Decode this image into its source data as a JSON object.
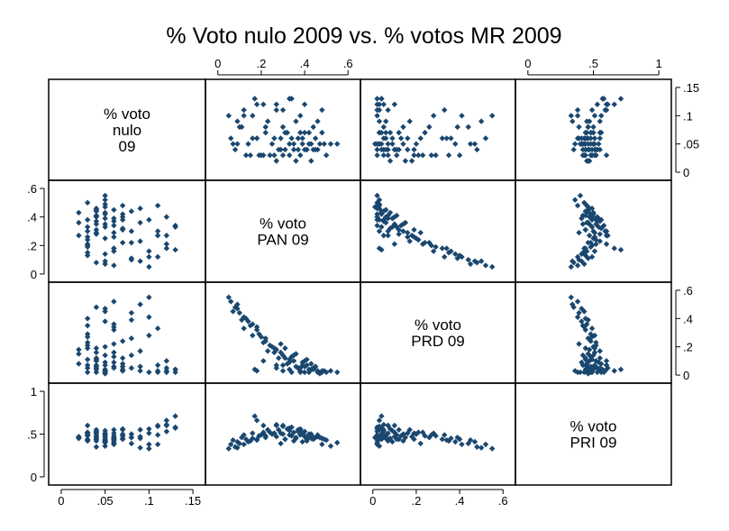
{
  "chart_data": {
    "type": "scatter_matrix",
    "title": "% Voto nulo 2009 vs. % votos MR 2009",
    "marker_color": "#1a476f",
    "variables": [
      {
        "key": "nulo",
        "label_lines": [
          "% voto",
          "nulo",
          "09"
        ],
        "range": [
          0,
          0.15
        ],
        "ticks": [
          0,
          0.05,
          0.1,
          0.15
        ],
        "tick_labels": [
          "0",
          ".05",
          ".1",
          ".15"
        ]
      },
      {
        "key": "pan",
        "label_lines": [
          "% voto",
          "PAN 09"
        ],
        "range": [
          0,
          0.6
        ],
        "ticks": [
          0,
          0.2,
          0.4,
          0.6
        ],
        "tick_labels": [
          "0",
          ".2",
          ".4",
          ".6"
        ]
      },
      {
        "key": "prd",
        "label_lines": [
          "% voto",
          "PRD 09"
        ],
        "range": [
          0,
          0.6
        ],
        "ticks": [
          0,
          0.2,
          0.4,
          0.6
        ],
        "tick_labels": [
          "0",
          ".2",
          ".4",
          ".6"
        ]
      },
      {
        "key": "pri",
        "label_lines": [
          "% voto",
          "PRI 09"
        ],
        "range": [
          0,
          1
        ],
        "ticks": [
          0,
          0.5,
          1
        ],
        "tick_labels": [
          "0",
          ".5",
          "1"
        ]
      }
    ],
    "observations": [
      [
        0.03,
        0.38,
        0.05,
        0.49
      ],
      [
        0.05,
        0.42,
        0.02,
        0.48
      ],
      [
        0.07,
        0.31,
        0.12,
        0.44
      ],
      [
        0.12,
        0.18,
        0.03,
        0.66
      ],
      [
        0.04,
        0.41,
        0.07,
        0.42
      ],
      [
        0.06,
        0.29,
        0.22,
        0.39
      ],
      [
        0.11,
        0.48,
        0.02,
        0.38
      ],
      [
        0.03,
        0.15,
        0.35,
        0.42
      ],
      [
        0.09,
        0.36,
        0.06,
        0.45
      ],
      [
        0.05,
        0.52,
        0.03,
        0.36
      ],
      [
        0.02,
        0.27,
        0.18,
        0.47
      ],
      [
        0.13,
        0.34,
        0.02,
        0.58
      ],
      [
        0.04,
        0.44,
        0.04,
        0.44
      ],
      [
        0.08,
        0.22,
        0.26,
        0.46
      ],
      [
        0.06,
        0.39,
        0.09,
        0.41
      ],
      [
        0.1,
        0.12,
        0.41,
        0.38
      ],
      [
        0.03,
        0.33,
        0.11,
        0.49
      ],
      [
        0.05,
        0.47,
        0.01,
        0.46
      ],
      [
        0.12,
        0.27,
        0.05,
        0.61
      ],
      [
        0.04,
        0.08,
        0.48,
        0.35
      ],
      [
        0.07,
        0.4,
        0.06,
        0.48
      ],
      [
        0.03,
        0.24,
        0.21,
        0.52
      ],
      [
        0.09,
        0.46,
        0.03,
        0.47
      ],
      [
        0.06,
        0.18,
        0.32,
        0.44
      ],
      [
        0.05,
        0.35,
        0.14,
        0.42
      ],
      [
        0.11,
        0.3,
        0.03,
        0.59
      ],
      [
        0.02,
        0.43,
        0.08,
        0.45
      ],
      [
        0.08,
        0.1,
        0.44,
        0.39
      ],
      [
        0.04,
        0.37,
        0.05,
        0.53
      ],
      [
        0.06,
        0.26,
        0.16,
        0.51
      ],
      [
        0.03,
        0.5,
        0.02,
        0.43
      ],
      [
        0.12,
        0.21,
        0.1,
        0.6
      ],
      [
        0.05,
        0.14,
        0.38,
        0.41
      ],
      [
        0.07,
        0.42,
        0.04,
        0.5
      ],
      [
        0.04,
        0.31,
        0.19,
        0.44
      ],
      [
        0.1,
        0.38,
        0.02,
        0.56
      ],
      [
        0.03,
        0.2,
        0.27,
        0.49
      ],
      [
        0.06,
        0.45,
        0.06,
        0.46
      ],
      [
        0.09,
        0.09,
        0.5,
        0.34
      ],
      [
        0.05,
        0.33,
        0.09,
        0.54
      ],
      [
        0.04,
        0.28,
        0.12,
        0.55
      ],
      [
        0.13,
        0.17,
        0.04,
        0.71
      ],
      [
        0.02,
        0.36,
        0.15,
        0.46
      ],
      [
        0.07,
        0.22,
        0.24,
        0.48
      ],
      [
        0.05,
        0.49,
        0.03,
        0.44
      ],
      [
        0.11,
        0.12,
        0.33,
        0.49
      ],
      [
        0.04,
        0.4,
        0.1,
        0.47
      ],
      [
        0.06,
        0.16,
        0.36,
        0.45
      ],
      [
        0.03,
        0.3,
        0.07,
        0.6
      ],
      [
        0.08,
        0.44,
        0.05,
        0.46
      ],
      [
        0.05,
        0.25,
        0.2,
        0.5
      ],
      [
        0.1,
        0.05,
        0.55,
        0.33
      ],
      [
        0.04,
        0.46,
        0.02,
        0.49
      ],
      [
        0.06,
        0.34,
        0.13,
        0.48
      ],
      [
        0.03,
        0.19,
        0.29,
        0.48
      ],
      [
        0.12,
        0.4,
        0.02,
        0.53
      ],
      [
        0.05,
        0.07,
        0.45,
        0.43
      ],
      [
        0.07,
        0.32,
        0.08,
        0.56
      ],
      [
        0.04,
        0.41,
        0.11,
        0.44
      ],
      [
        0.09,
        0.23,
        0.17,
        0.55
      ],
      [
        0.05,
        0.55,
        0.02,
        0.4
      ],
      [
        0.03,
        0.13,
        0.4,
        0.44
      ],
      [
        0.06,
        0.37,
        0.05,
        0.55
      ],
      [
        0.11,
        0.27,
        0.07,
        0.6
      ],
      [
        0.04,
        0.29,
        0.16,
        0.51
      ],
      [
        0.08,
        0.11,
        0.39,
        0.46
      ],
      [
        0.05,
        0.43,
        0.04,
        0.5
      ],
      [
        0.03,
        0.21,
        0.23,
        0.52
      ],
      [
        0.07,
        0.48,
        0.03,
        0.45
      ],
      [
        0.06,
        0.06,
        0.52,
        0.38
      ],
      [
        0.04,
        0.35,
        0.1,
        0.52
      ],
      [
        0.1,
        0.16,
        0.28,
        0.51
      ],
      [
        0.05,
        0.39,
        0.07,
        0.51
      ],
      [
        0.03,
        0.26,
        0.19,
        0.51
      ],
      [
        0.13,
        0.33,
        0.04,
        0.57
      ],
      [
        0.06,
        0.18,
        0.34,
        0.43
      ],
      [
        0.04,
        0.45,
        0.06,
        0.46
      ],
      [
        0.08,
        0.3,
        0.14,
        0.5
      ],
      [
        0.05,
        0.09,
        0.47,
        0.41
      ],
      [
        0.07,
        0.38,
        0.03,
        0.55
      ]
    ]
  }
}
